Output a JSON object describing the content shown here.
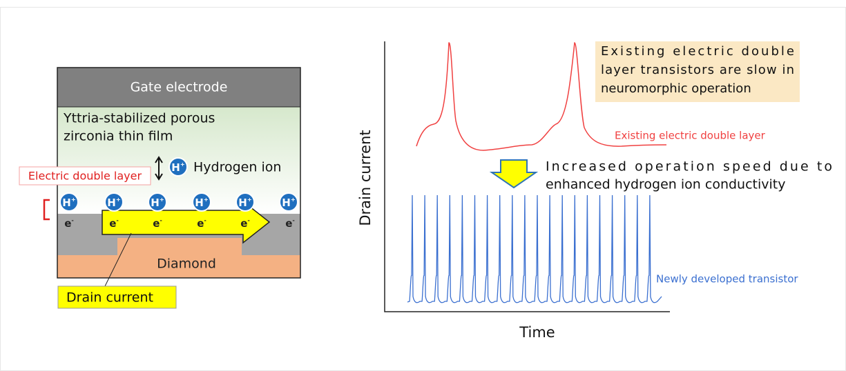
{
  "device": {
    "gate": "Gate electrode",
    "film": [
      "Yttria-stabilized porous",
      "zirconia thin film"
    ],
    "hydrogen_ion": "Hydrogen ion",
    "edl": "Electric double layer",
    "ion_symbol": "H",
    "ion_charge": "+",
    "electron_symbol": "e",
    "electron_charge": "-",
    "substrate": "Diamond",
    "drain_current": "Drain current"
  },
  "plot": {
    "y_label": "Drain current",
    "x_label": "Time",
    "callout": [
      "Existing electric double",
      "layer transistors are slow in",
      "neuromorphic operation"
    ],
    "existing_label": "Existing electric double layer",
    "speedup": [
      "Increased operation speed due to",
      "enhanced hydrogen ion conductivity"
    ],
    "new_label": "Newly developed transistor"
  }
}
